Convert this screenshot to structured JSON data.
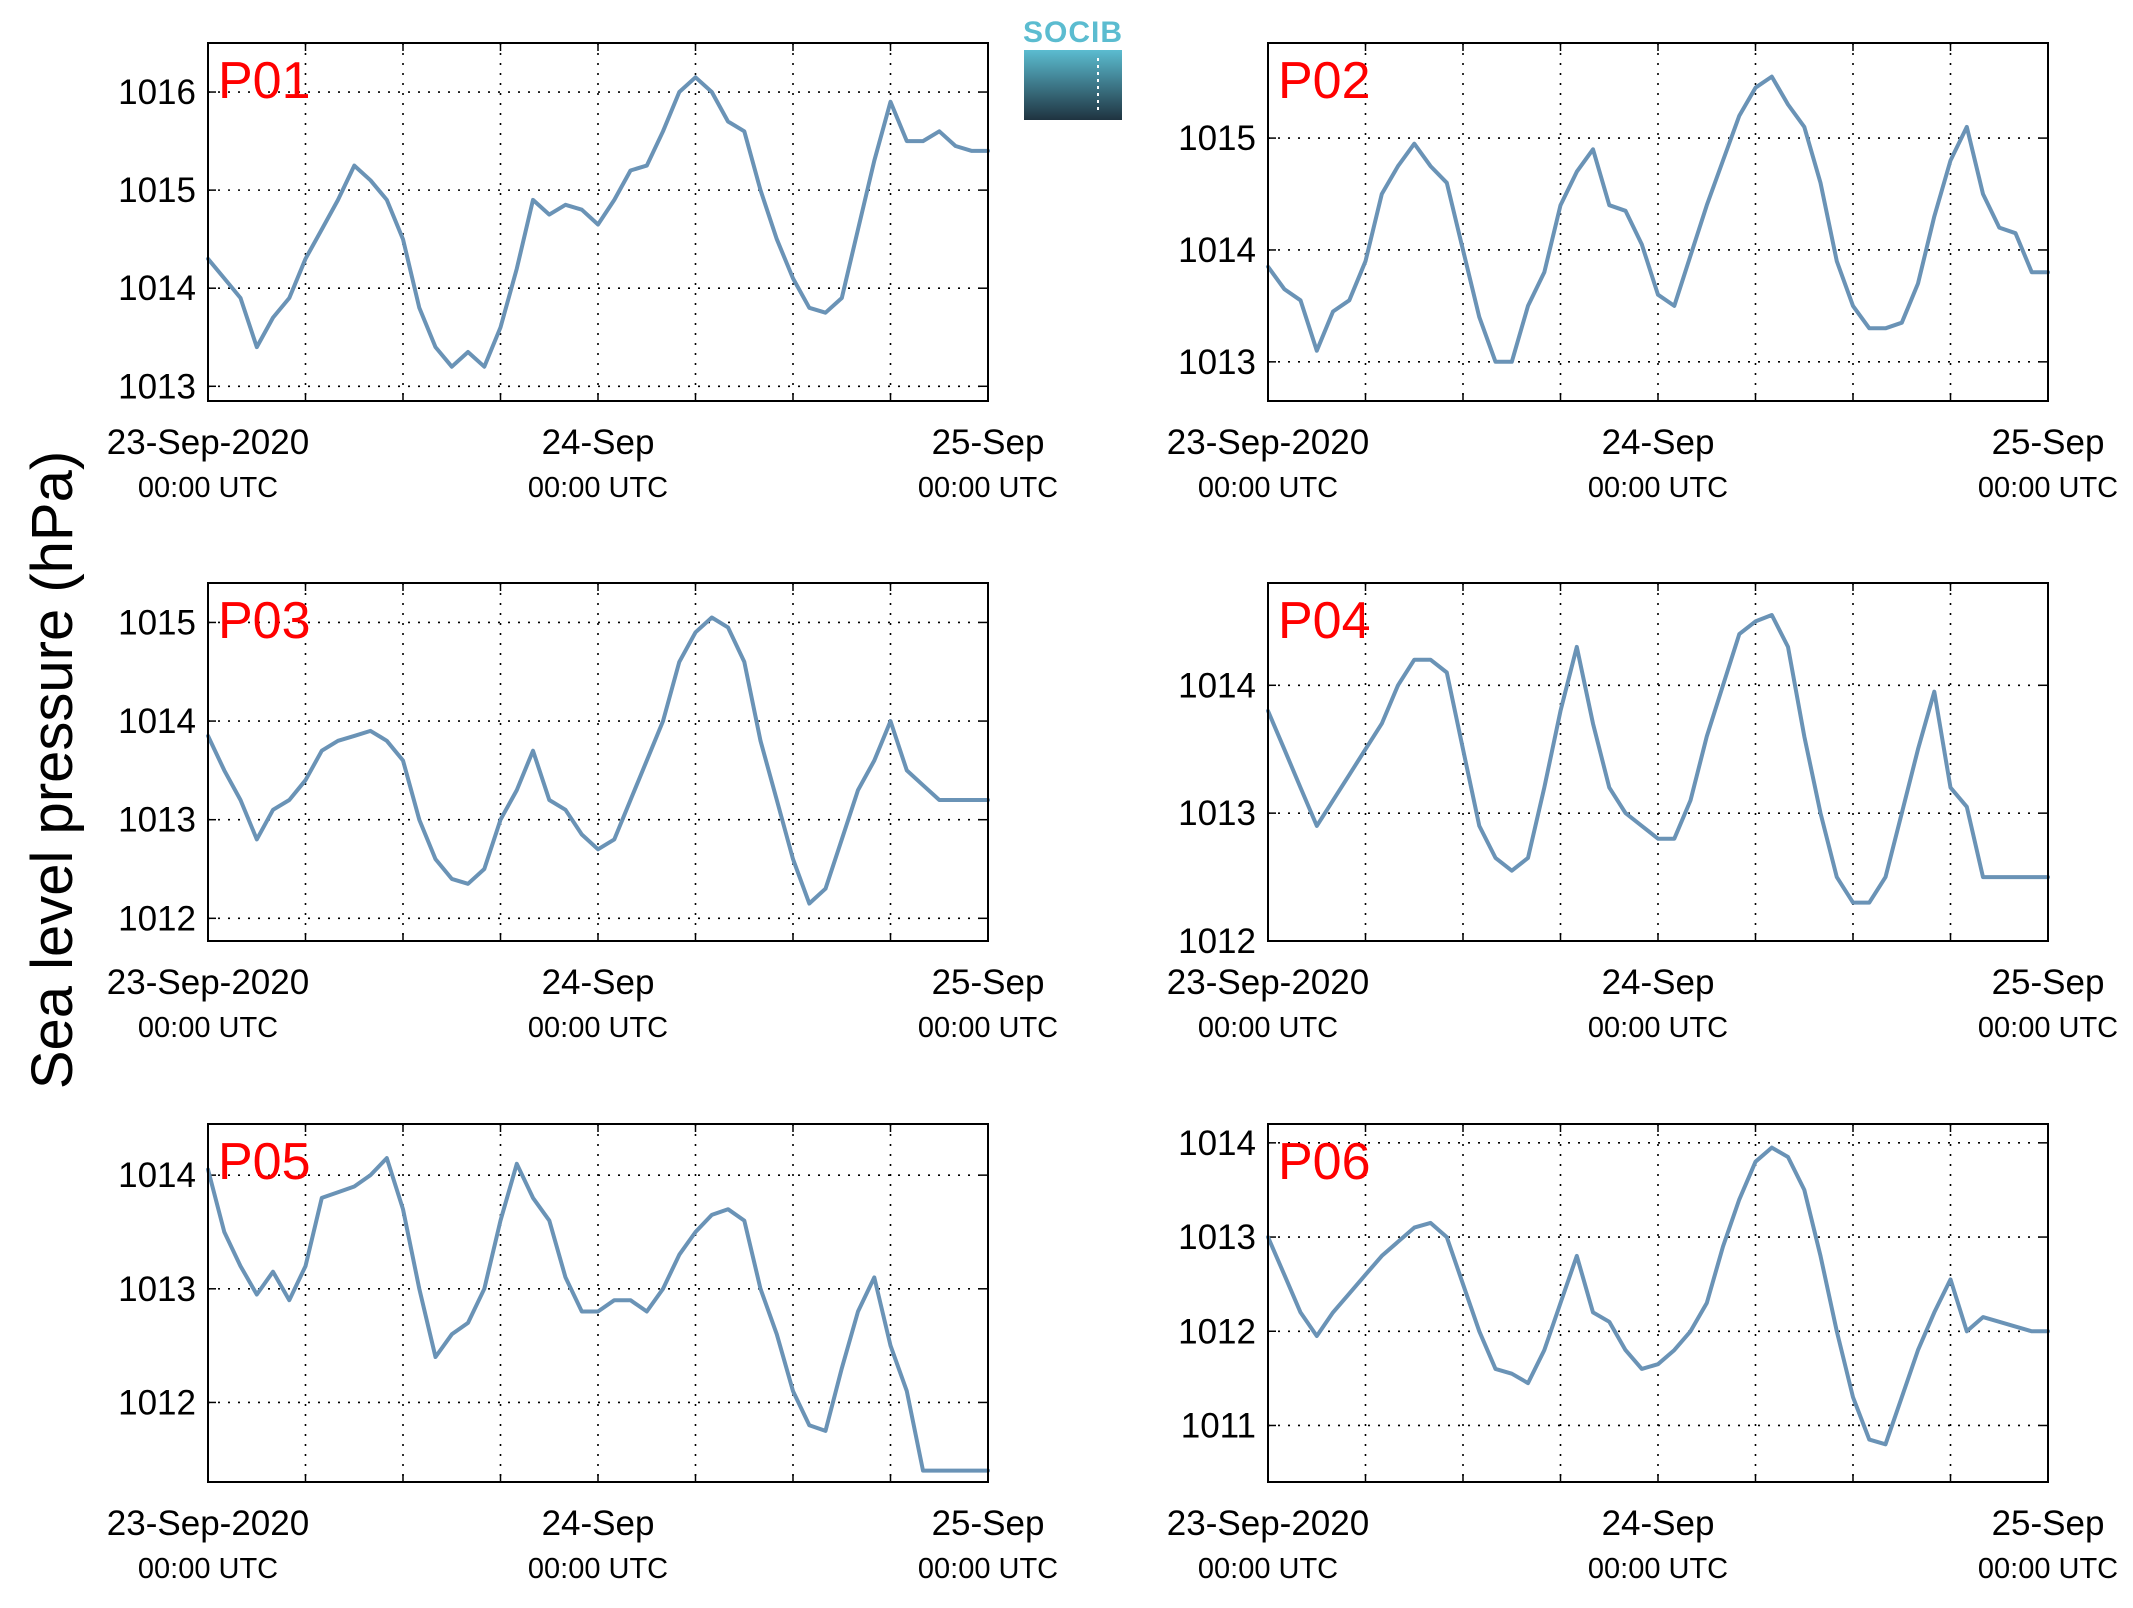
{
  "figure": {
    "ylabel": "Sea level pressure (hPa)",
    "logo_text": "SOCIB"
  },
  "colors": {
    "line": "#6a93b6",
    "title": "#ff0000",
    "logo_top": "#5bbcd0",
    "logo_bottom": "#1f3340"
  },
  "x_ticks": [
    {
      "label": "23-Sep-2020",
      "sub": "00:00 UTC"
    },
    {
      "label": "24-Sep",
      "sub": "00:00 UTC"
    },
    {
      "label": "25-Sep",
      "sub": "00:00 UTC"
    }
  ],
  "chart_data": [
    {
      "type": "line",
      "title": "P01",
      "x_range": [
        "2020-09-23 00:00",
        "2020-09-25 00:00"
      ],
      "ylim": [
        1012.85,
        1016.5
      ],
      "yticks": [
        1013,
        1014,
        1015,
        1016
      ],
      "grid": true,
      "series": [
        {
          "x_hours": [
            0,
            1,
            2,
            3,
            4,
            5,
            6,
            7,
            8,
            9,
            10,
            11,
            12,
            13,
            14,
            15,
            16,
            17,
            18,
            19,
            20,
            21,
            22,
            23,
            24,
            25,
            26,
            27,
            28,
            29,
            30,
            31,
            32,
            33,
            34,
            35,
            36,
            37,
            38,
            39,
            40,
            41,
            42,
            43,
            44,
            45,
            46,
            47,
            48
          ],
          "values": [
            1014.3,
            1014.1,
            1013.9,
            1013.4,
            1013.7,
            1013.9,
            1014.3,
            1014.6,
            1014.9,
            1015.25,
            1015.1,
            1014.9,
            1014.5,
            1013.8,
            1013.4,
            1013.2,
            1013.35,
            1013.2,
            1013.6,
            1014.2,
            1014.9,
            1014.75,
            1014.85,
            1014.8,
            1014.65,
            1014.9,
            1015.2,
            1015.25,
            1015.6,
            1016.0,
            1016.15,
            1016.0,
            1015.7,
            1015.6,
            1015.0,
            1014.5,
            1014.1,
            1013.8,
            1013.75,
            1013.9,
            1014.6,
            1015.3,
            1015.9,
            1015.5,
            1015.5,
            1015.6,
            1015.45,
            1015.4,
            1015.4
          ],
          "display_end_hour": 48
        }
      ]
    },
    {
      "type": "line",
      "title": "P02",
      "x_range": [
        "2020-09-23 00:00",
        "2020-09-25 00:00"
      ],
      "ylim": [
        1012.65,
        1015.85
      ],
      "yticks": [
        1013,
        1014,
        1015
      ],
      "grid": true,
      "series": [
        {
          "x_hours": [
            0,
            1,
            2,
            3,
            4,
            5,
            6,
            7,
            8,
            9,
            10,
            11,
            12,
            13,
            14,
            15,
            16,
            17,
            18,
            19,
            20,
            21,
            22,
            23,
            24,
            25,
            26,
            27,
            28,
            29,
            30,
            31,
            32,
            33,
            34,
            35,
            36,
            37,
            38,
            39,
            40,
            41,
            42,
            43,
            44,
            45,
            46,
            47,
            48
          ],
          "values": [
            1013.85,
            1013.65,
            1013.55,
            1013.1,
            1013.45,
            1013.55,
            1013.9,
            1014.5,
            1014.75,
            1014.95,
            1014.75,
            1014.6,
            1014.0,
            1013.4,
            1013.0,
            1013.0,
            1013.5,
            1013.8,
            1014.4,
            1014.7,
            1014.9,
            1014.4,
            1014.35,
            1014.05,
            1013.6,
            1013.5,
            1013.95,
            1014.4,
            1014.8,
            1015.2,
            1015.45,
            1015.55,
            1015.3,
            1015.1,
            1014.6,
            1013.9,
            1013.5,
            1013.3,
            1013.3,
            1013.35,
            1013.7,
            1014.3,
            1014.8,
            1015.1,
            1014.5,
            1014.2,
            1014.15,
            1013.8,
            1013.8
          ],
          "display_end_hour": 48
        }
      ]
    },
    {
      "type": "line",
      "title": "P03",
      "x_range": [
        "2020-09-23 00:00",
        "2020-09-25 00:00"
      ],
      "ylim": [
        1011.77,
        1015.4
      ],
      "yticks": [
        1012,
        1013,
        1014,
        1015
      ],
      "grid": true,
      "series": [
        {
          "x_hours": [
            0,
            1,
            2,
            3,
            4,
            5,
            6,
            7,
            8,
            9,
            10,
            11,
            12,
            13,
            14,
            15,
            16,
            17,
            18,
            19,
            20,
            21,
            22,
            23,
            24,
            25,
            26,
            27,
            28,
            29,
            30,
            31,
            32,
            33,
            34,
            35,
            36,
            37,
            38,
            39,
            40,
            41,
            42,
            43,
            44,
            45,
            46,
            47,
            48
          ],
          "values": [
            1013.85,
            1013.5,
            1013.2,
            1012.8,
            1013.1,
            1013.2,
            1013.4,
            1013.7,
            1013.8,
            1013.85,
            1013.9,
            1013.8,
            1013.6,
            1013.0,
            1012.6,
            1012.4,
            1012.35,
            1012.5,
            1013.0,
            1013.3,
            1013.7,
            1013.2,
            1013.1,
            1012.85,
            1012.7,
            1012.8,
            1013.2,
            1013.6,
            1014.0,
            1014.6,
            1014.9,
            1015.05,
            1014.95,
            1014.6,
            1013.8,
            1013.2,
            1012.6,
            1012.15,
            1012.3,
            1012.8,
            1013.3,
            1013.6,
            1014.0,
            1013.5,
            1013.35,
            1013.2,
            1013.2,
            1013.2,
            1013.2
          ],
          "display_end_hour": 48
        }
      ]
    },
    {
      "type": "line",
      "title": "P04",
      "x_range": [
        "2020-09-23 00:00",
        "2020-09-25 00:00"
      ],
      "ylim": [
        1012.0,
        1014.8
      ],
      "yticks": [
        1012,
        1013,
        1014
      ],
      "grid": true,
      "series": [
        {
          "x_hours": [
            0,
            1,
            2,
            3,
            4,
            5,
            6,
            7,
            8,
            9,
            10,
            11,
            12,
            13,
            14,
            15,
            16,
            17,
            18,
            19,
            20,
            21,
            22,
            23,
            24,
            25,
            26,
            27,
            28,
            29,
            30,
            31,
            32,
            33,
            34,
            35,
            36,
            37,
            38,
            39,
            40,
            41,
            42,
            43,
            44,
            45,
            46,
            47,
            48
          ],
          "values": [
            1013.8,
            1013.5,
            1013.2,
            1012.9,
            1013.1,
            1013.3,
            1013.5,
            1013.7,
            1014.0,
            1014.2,
            1014.2,
            1014.1,
            1013.5,
            1012.9,
            1012.65,
            1012.55,
            1012.65,
            1013.2,
            1013.8,
            1014.3,
            1013.7,
            1013.2,
            1013.0,
            1012.9,
            1012.8,
            1012.8,
            1013.1,
            1013.6,
            1014.0,
            1014.4,
            1014.5,
            1014.55,
            1014.3,
            1013.6,
            1013.0,
            1012.5,
            1012.3,
            1012.3,
            1012.5,
            1013.0,
            1013.5,
            1013.95,
            1013.2,
            1013.05,
            1012.5,
            1012.5,
            1012.5,
            1012.5,
            1012.5
          ],
          "display_end_hour": 48
        }
      ]
    },
    {
      "type": "line",
      "title": "P05",
      "x_range": [
        "2020-09-23 00:00",
        "2020-09-25 00:00"
      ],
      "ylim": [
        1011.3,
        1014.45
      ],
      "yticks": [
        1012,
        1013,
        1014
      ],
      "grid": true,
      "series": [
        {
          "x_hours": [
            0,
            1,
            2,
            3,
            4,
            5,
            6,
            7,
            8,
            9,
            10,
            11,
            12,
            13,
            14,
            15,
            16,
            17,
            18,
            19,
            20,
            21,
            22,
            23,
            24,
            25,
            26,
            27,
            28,
            29,
            30,
            31,
            32,
            33,
            34,
            35,
            36,
            37,
            38,
            39,
            40,
            41,
            42,
            43,
            44,
            45,
            46,
            47,
            48
          ],
          "values": [
            1014.05,
            1013.5,
            1013.2,
            1012.95,
            1013.15,
            1012.9,
            1013.2,
            1013.8,
            1013.85,
            1013.9,
            1014.0,
            1014.15,
            1013.7,
            1013.0,
            1012.4,
            1012.6,
            1012.7,
            1013.0,
            1013.6,
            1014.1,
            1013.8,
            1013.6,
            1013.1,
            1012.8,
            1012.8,
            1012.9,
            1012.9,
            1012.8,
            1013.0,
            1013.3,
            1013.5,
            1013.65,
            1013.7,
            1013.6,
            1013.0,
            1012.6,
            1012.1,
            1011.8,
            1011.75,
            1012.3,
            1012.8,
            1013.1,
            1012.5,
            1012.1,
            1011.4,
            1011.4,
            1011.4,
            1011.4,
            1011.4
          ],
          "display_end_hour": 48
        }
      ]
    },
    {
      "type": "line",
      "title": "P06",
      "x_range": [
        "2020-09-23 00:00",
        "2020-09-25 00:00"
      ],
      "ylim": [
        1010.4,
        1014.2
      ],
      "yticks": [
        1011,
        1012,
        1013,
        1014
      ],
      "grid": true,
      "series": [
        {
          "x_hours": [
            0,
            1,
            2,
            3,
            4,
            5,
            6,
            7,
            8,
            9,
            10,
            11,
            12,
            13,
            14,
            15,
            16,
            17,
            18,
            19,
            20,
            21,
            22,
            23,
            24,
            25,
            26,
            27,
            28,
            29,
            30,
            31,
            32,
            33,
            34,
            35,
            36,
            37,
            38,
            39,
            40,
            41,
            42,
            43,
            44,
            45,
            46,
            47,
            48
          ],
          "values": [
            1013.0,
            1012.6,
            1012.2,
            1011.95,
            1012.2,
            1012.4,
            1012.6,
            1012.8,
            1012.95,
            1013.1,
            1013.15,
            1013.0,
            1012.5,
            1012.0,
            1011.6,
            1011.55,
            1011.45,
            1011.8,
            1012.3,
            1012.8,
            1012.2,
            1012.1,
            1011.8,
            1011.6,
            1011.65,
            1011.8,
            1012.0,
            1012.3,
            1012.9,
            1013.4,
            1013.8,
            1013.95,
            1013.85,
            1013.5,
            1012.8,
            1012.0,
            1011.3,
            1010.85,
            1010.8,
            1011.3,
            1011.8,
            1012.2,
            1012.55,
            1012.0,
            1012.15,
            1012.1,
            1012.05,
            1012.0,
            1012.0
          ],
          "display_end_hour": 48
        }
      ]
    }
  ]
}
